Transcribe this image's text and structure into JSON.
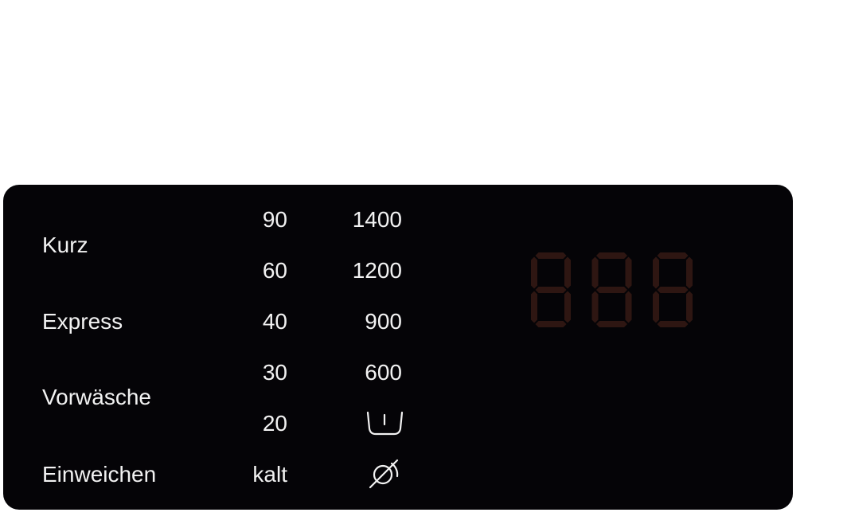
{
  "programs": [
    "Kurz",
    "Express",
    "Vorwäsche",
    "Einweichen"
  ],
  "temperatures": [
    "90",
    "60",
    "40",
    "30",
    "20",
    "kalt"
  ],
  "spin_speeds": [
    "1400",
    "1200",
    "900",
    "600"
  ],
  "spin_icons": [
    "rinse-hold-icon",
    "no-spin-icon"
  ],
  "display": {
    "digits": [
      "8",
      "8",
      "8"
    ],
    "lit": false,
    "segment_color": "#2e1612"
  },
  "colors": {
    "panel": "#050407",
    "text": "#f2f2f2"
  }
}
